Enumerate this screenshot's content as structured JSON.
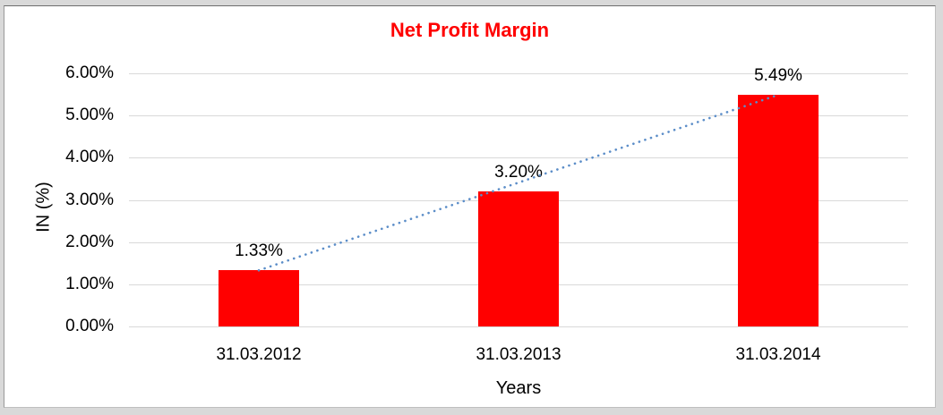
{
  "chart_data": {
    "type": "bar",
    "title": "Net Profit Margin",
    "categories": [
      "31.03.2012",
      "31.03.2013",
      "31.03.2014"
    ],
    "values": [
      1.33,
      3.2,
      5.49
    ],
    "data_labels": [
      "1.33%",
      "3.20%",
      "5.49%"
    ],
    "xlabel": "Years",
    "ylabel": "IN (%)",
    "ylim": [
      0,
      6
    ],
    "ytick_step": 1,
    "ytick_labels": [
      "0.00%",
      "1.00%",
      "2.00%",
      "3.00%",
      "4.00%",
      "5.00%",
      "6.00%"
    ],
    "grid": true,
    "legend": false,
    "trendline": {
      "type": "linear",
      "style": "dotted"
    },
    "colors": {
      "bar": "#FF0000",
      "title": "#FF0000",
      "gridline": "#D9D9D9",
      "trendline": "#5B8DC8",
      "plot_background": "#FFFFFF",
      "outer_background": "#D9D9D9"
    }
  }
}
